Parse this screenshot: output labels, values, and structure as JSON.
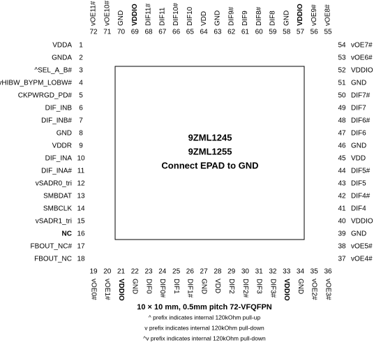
{
  "pins": {
    "top": [
      {
        "number": 72,
        "name": "vOE11#"
      },
      {
        "number": 71,
        "name": "vOE10#"
      },
      {
        "number": 70,
        "name": "GND"
      },
      {
        "number": 69,
        "name": "VDDIO",
        "bold": true
      },
      {
        "number": 68,
        "name": "DIF11#"
      },
      {
        "number": 67,
        "name": "DIF11"
      },
      {
        "number": 66,
        "name": "DIF10#"
      },
      {
        "number": 65,
        "name": "DIF10"
      },
      {
        "number": 64,
        "name": "VDD"
      },
      {
        "number": 63,
        "name": "GND"
      },
      {
        "number": 62,
        "name": "DIF9#"
      },
      {
        "number": 61,
        "name": "DIF9"
      },
      {
        "number": 60,
        "name": "DIF8#"
      },
      {
        "number": 59,
        "name": "DIF8"
      },
      {
        "number": 58,
        "name": "GND"
      },
      {
        "number": 57,
        "name": "VDDIO",
        "bold": true
      },
      {
        "number": 56,
        "name": "vOE9#"
      },
      {
        "number": 55,
        "name": "vOE8#"
      }
    ],
    "left": [
      {
        "number": 1,
        "name": "VDDA"
      },
      {
        "number": 2,
        "name": "GNDA"
      },
      {
        "number": 3,
        "name": "^SEL_A_B#"
      },
      {
        "number": 4,
        "name": "^vHIBW_BYPM_LOBW#"
      },
      {
        "number": 5,
        "name": "CKPWRGD_PD#"
      },
      {
        "number": 6,
        "name": "DIF_INB"
      },
      {
        "number": 7,
        "name": "DIF_INB#"
      },
      {
        "number": 8,
        "name": "GND"
      },
      {
        "number": 9,
        "name": "VDDR"
      },
      {
        "number": 10,
        "name": "DIF_INA"
      },
      {
        "number": 11,
        "name": "DIF_INA#"
      },
      {
        "number": 12,
        "name": "vSADR0_tri"
      },
      {
        "number": 13,
        "name": "SMBDAT"
      },
      {
        "number": 14,
        "name": "SMBCLK"
      },
      {
        "number": 15,
        "name": "vSADR1_tri"
      },
      {
        "number": 16,
        "name": "NC",
        "bold": true
      },
      {
        "number": 17,
        "name": "FBOUT_NC#"
      },
      {
        "number": 18,
        "name": "FBOUT_NC"
      }
    ],
    "right": [
      {
        "number": 54,
        "name": "vOE7#"
      },
      {
        "number": 53,
        "name": "vOE6#"
      },
      {
        "number": 52,
        "name": "VDDIO"
      },
      {
        "number": 51,
        "name": "GND"
      },
      {
        "number": 50,
        "name": "DIF7#"
      },
      {
        "number": 49,
        "name": "DIF7"
      },
      {
        "number": 48,
        "name": "DIF6#"
      },
      {
        "number": 47,
        "name": "DIF6"
      },
      {
        "number": 46,
        "name": "GND"
      },
      {
        "number": 45,
        "name": "VDD"
      },
      {
        "number": 44,
        "name": "DIF5#"
      },
      {
        "number": 43,
        "name": "DIF5"
      },
      {
        "number": 42,
        "name": "DIF4#"
      },
      {
        "number": 41,
        "name": "DIF4"
      },
      {
        "number": 40,
        "name": "VDDIO"
      },
      {
        "number": 39,
        "name": "GND"
      },
      {
        "number": 38,
        "name": "vOE5#"
      },
      {
        "number": 37,
        "name": "vOE4#"
      }
    ],
    "bottom": [
      {
        "number": 19,
        "name": "vOE0#"
      },
      {
        "number": 20,
        "name": "vOE1#"
      },
      {
        "number": 21,
        "name": "VDDIO",
        "bold": true
      },
      {
        "number": 22,
        "name": "GND"
      },
      {
        "number": 23,
        "name": "DIF0"
      },
      {
        "number": 24,
        "name": "DIF0#"
      },
      {
        "number": 25,
        "name": "DIF1"
      },
      {
        "number": 26,
        "name": "DIF1#"
      },
      {
        "number": 27,
        "name": "GND"
      },
      {
        "number": 28,
        "name": "VDD"
      },
      {
        "number": 29,
        "name": "DIF2"
      },
      {
        "number": 30,
        "name": "DIF2#"
      },
      {
        "number": 31,
        "name": "DIF3"
      },
      {
        "number": 32,
        "name": "DIF3#"
      },
      {
        "number": 33,
        "name": "VDDIO",
        "bold": true
      },
      {
        "number": 34,
        "name": "GND"
      },
      {
        "number": 35,
        "name": "vOE2#"
      },
      {
        "number": 36,
        "name": "vOE3#"
      }
    ]
  },
  "center": {
    "lines": [
      "9ZML1245",
      "9ZML1255",
      "Connect EPAD to GND"
    ]
  },
  "footer": {
    "package": "10 × 10 mm, 0.5mm pitch  72-VFQFPN",
    "notes": [
      "^ prefix indicates internal 120kOhm pull-up",
      "v prefix indicates internal 120kOhm pull-down",
      "^v prefix indicates internal 120kOhm pull-down"
    ]
  }
}
